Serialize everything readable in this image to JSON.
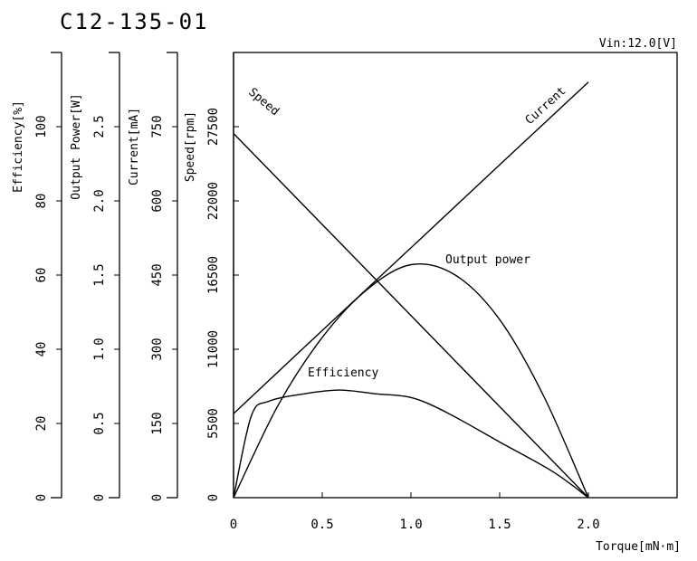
{
  "chart_data": {
    "type": "line",
    "title": "C12-135-01",
    "subtitle": "Vin:12.0[V]",
    "xlabel": "Torque[mN·m]",
    "xlim": [
      0,
      2.5
    ],
    "x_ticks": [
      "0",
      "0.5",
      "1.0",
      "1.5",
      "2.0"
    ],
    "grid": false,
    "y_axes": [
      {
        "label": "Efficiency[%]",
        "ylim": [
          0,
          120
        ],
        "ticks": [
          "0",
          "20",
          "40",
          "60",
          "80",
          "100"
        ]
      },
      {
        "label": "Output Power[W]",
        "ylim": [
          0,
          3.0
        ],
        "ticks": [
          "0",
          "0.5",
          "1.0",
          "1.5",
          "2.0",
          "2.5"
        ]
      },
      {
        "label": "Current[mA]",
        "ylim": [
          0,
          900
        ],
        "ticks": [
          "0",
          "150",
          "300",
          "450",
          "600",
          "750"
        ]
      },
      {
        "label": "Speed[rpm]",
        "ylim": [
          0,
          33000
        ],
        "ticks": [
          "0",
          "5500",
          "11000",
          "16500",
          "22000",
          "27500"
        ]
      }
    ],
    "series": [
      {
        "name": "Speed",
        "axis": 3,
        "x": [
          0,
          0.5,
          1.0,
          1.5,
          2.0
        ],
        "values": [
          27000,
          20250,
          13500,
          6750,
          0
        ]
      },
      {
        "name": "Current",
        "axis": 2,
        "x": [
          0,
          0.5,
          1.0,
          1.5,
          2.0
        ],
        "values": [
          170,
          338,
          505,
          673,
          840
        ]
      },
      {
        "name": "Output power",
        "axis": 1,
        "x": [
          0,
          0.25,
          0.5,
          0.75,
          1.0,
          1.25,
          1.5,
          1.75,
          2.0
        ],
        "values": [
          0,
          0.62,
          1.08,
          1.4,
          1.57,
          1.5,
          1.2,
          0.68,
          0
        ]
      },
      {
        "name": "Efficiency",
        "axis": 0,
        "x": [
          0,
          0.1,
          0.2,
          0.4,
          0.6,
          0.8,
          1.0,
          1.2,
          1.5,
          1.8,
          2.0
        ],
        "values": [
          0,
          22,
          26,
          28,
          29,
          28,
          27,
          23,
          15,
          7,
          0
        ]
      }
    ]
  }
}
